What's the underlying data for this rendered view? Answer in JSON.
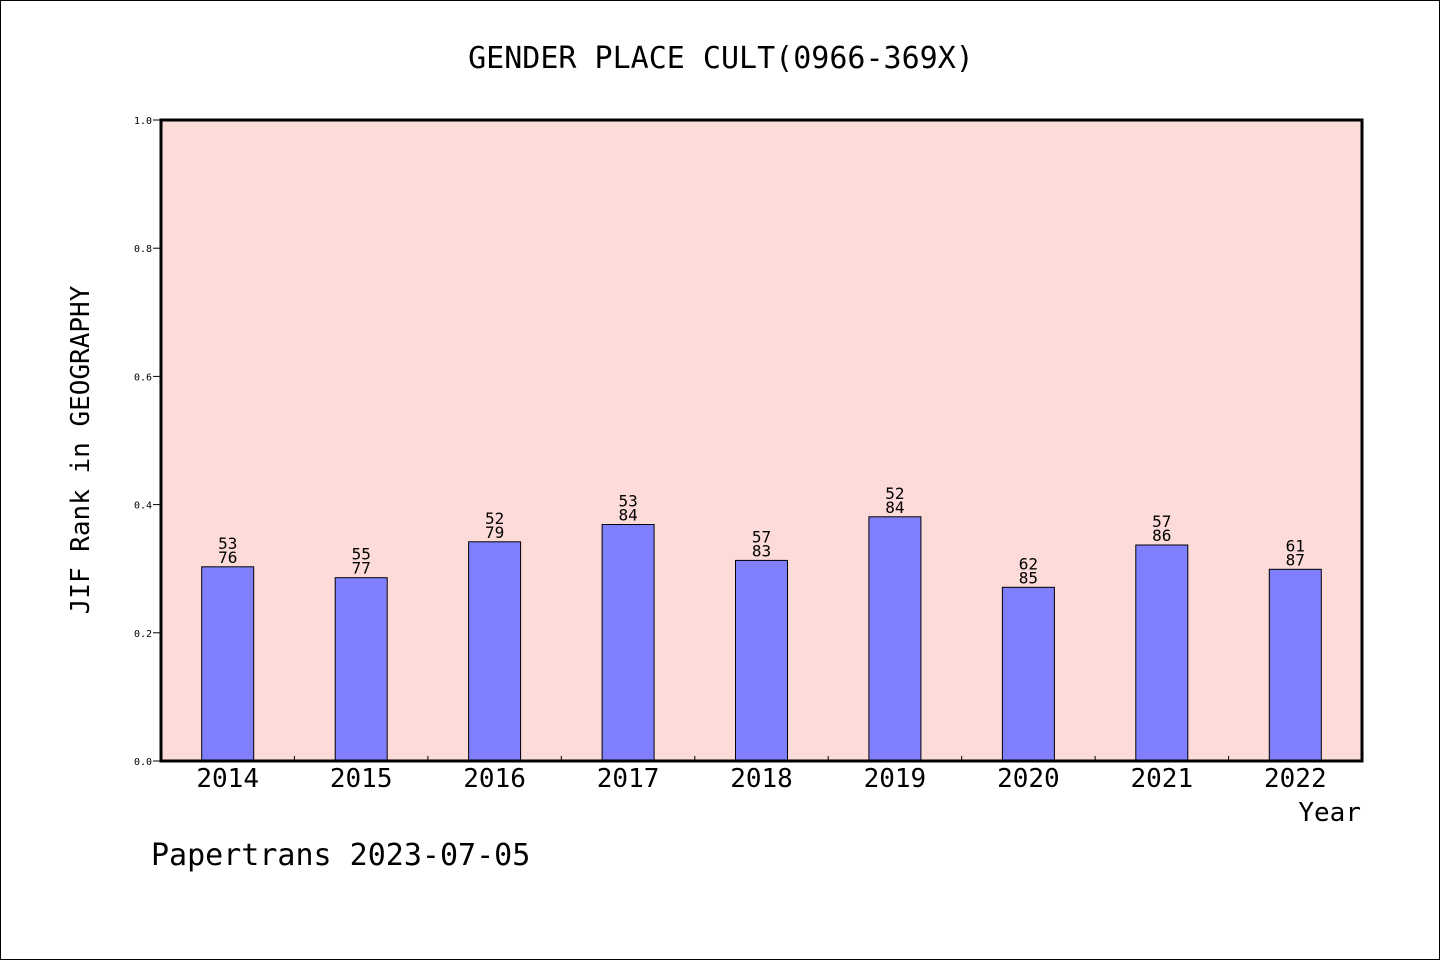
{
  "chart_data": {
    "type": "bar",
    "title": "GENDER PLACE CULT(0966-369X)",
    "xlabel": "Year",
    "ylabel": "JIF Rank in GEOGRAPHY",
    "ylim": [
      0.0,
      1.0
    ],
    "yticks": [
      "0.0",
      "0.2",
      "0.4",
      "0.6",
      "0.8",
      "1.0"
    ],
    "categories": [
      "2014",
      "2015",
      "2016",
      "2017",
      "2018",
      "2019",
      "2020",
      "2021",
      "2022"
    ],
    "values": [
      0.303,
      0.286,
      0.342,
      0.369,
      0.313,
      0.381,
      0.271,
      0.337,
      0.299
    ],
    "rank_labels": [
      {
        "top": "53",
        "bottom": "76"
      },
      {
        "top": "55",
        "bottom": "77"
      },
      {
        "top": "52",
        "bottom": "79"
      },
      {
        "top": "53",
        "bottom": "84"
      },
      {
        "top": "57",
        "bottom": "83"
      },
      {
        "top": "52",
        "bottom": "84"
      },
      {
        "top": "62",
        "bottom": "85"
      },
      {
        "top": "57",
        "bottom": "86"
      },
      {
        "top": "61",
        "bottom": "87"
      }
    ],
    "grid": false,
    "legend": "none"
  },
  "footer": "Papertrans 2023-07-05",
  "colors": {
    "plot_background": "#fddbd8",
    "bar_fill": "#8080ff",
    "bar_stroke": "#000000",
    "axis": "#000000"
  }
}
